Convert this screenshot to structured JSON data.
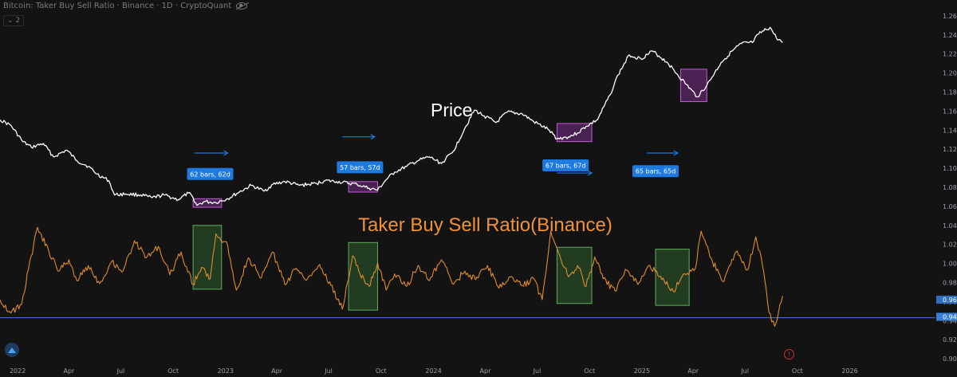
{
  "header": {
    "title": "Bitcoin: Taker Buy Sell Ratio · Binance · 1D · CryptoQuant",
    "layers_count": "2",
    "eye_icon": "eye-hidden-icon"
  },
  "colors": {
    "background": "#131313",
    "price_line": "#ffffff",
    "ratio_line": "#e08a2e",
    "price_box": "#b03cc8",
    "ratio_box": "#3f8a3f",
    "callout": "#1f7ae0",
    "ref_line": "#3b7fd4",
    "price_label": "#ffffff",
    "ratio_label": "#f0923a",
    "axis_text": "#9aa0aa"
  },
  "chart_data": {
    "type": "line",
    "title": "",
    "xlabel": "",
    "ylabel": "",
    "x_ticks": [
      "2022",
      "Apr",
      "Jul",
      "Oct",
      "2023",
      "Apr",
      "Jul",
      "Oct",
      "2024",
      "Apr",
      "Jul",
      "Oct",
      "2025",
      "Apr",
      "Jul",
      "Oct",
      "2026"
    ],
    "y_ticks": [
      "1.26",
      "1.24",
      "1.22",
      "1.20",
      "1.18",
      "1.16",
      "1.14",
      "1.12",
      "1.10",
      "1.08",
      "1.06",
      "1.04",
      "1.02",
      "1.00",
      "0.98",
      "0.96",
      "0.94",
      "0.92",
      "0.90"
    ],
    "ylim": [
      0.89,
      1.27
    ],
    "x_range": [
      "2021-12-01",
      "2025-09-20"
    ],
    "grid": false,
    "annotations": [
      {
        "text": "Price",
        "color": "#ffffff"
      },
      {
        "text": "Taker Buy Sell Ratio(Binance)",
        "color": "#f0923a"
      }
    ],
    "current_value_labels": [
      {
        "text": "0.96",
        "value": 0.962
      },
      {
        "text": "0.94",
        "value": 0.944
      }
    ],
    "reference_line": 0.943,
    "series": [
      {
        "role": "price",
        "x": [
          "2021-12-01",
          "2021-12-20",
          "2022-01-10",
          "2022-01-25",
          "2022-02-15",
          "2022-03-05",
          "2022-03-28",
          "2022-04-15",
          "2022-05-05",
          "2022-05-20",
          "2022-06-10",
          "2022-06-20",
          "2022-07-10",
          "2022-08-05",
          "2022-08-25",
          "2022-09-15",
          "2022-10-10",
          "2022-10-28",
          "2022-11-05",
          "2022-11-12",
          "2022-11-25",
          "2022-12-15",
          "2023-01-05",
          "2023-01-25",
          "2023-02-15",
          "2023-03-10",
          "2023-03-25",
          "2023-04-15",
          "2023-05-10",
          "2023-06-10",
          "2023-06-25",
          "2023-07-15",
          "2023-08-20",
          "2023-09-10",
          "2023-09-25",
          "2023-10-10",
          "2023-10-25",
          "2023-11-15",
          "2023-12-05",
          "2023-12-25",
          "2024-01-15",
          "2024-02-05",
          "2024-02-25",
          "2024-03-13",
          "2024-03-30",
          "2024-04-20",
          "2024-05-10",
          "2024-06-05",
          "2024-06-25",
          "2024-07-20",
          "2024-08-05",
          "2024-08-25",
          "2024-09-10",
          "2024-09-25",
          "2024-10-15",
          "2024-11-06",
          "2024-11-20",
          "2024-12-10",
          "2024-12-30",
          "2025-01-20",
          "2025-02-15",
          "2025-03-05",
          "2025-03-20",
          "2025-04-08",
          "2025-04-25",
          "2025-05-20",
          "2025-06-10",
          "2025-06-25",
          "2025-07-14",
          "2025-07-25",
          "2025-08-14",
          "2025-08-25",
          "2025-09-05"
        ],
        "values": [
          1.151,
          1.145,
          1.128,
          1.122,
          1.126,
          1.112,
          1.119,
          1.108,
          1.102,
          1.094,
          1.087,
          1.072,
          1.073,
          1.072,
          1.069,
          1.072,
          1.067,
          1.074,
          1.069,
          1.061,
          1.065,
          1.064,
          1.068,
          1.075,
          1.082,
          1.076,
          1.083,
          1.086,
          1.082,
          1.084,
          1.087,
          1.086,
          1.083,
          1.079,
          1.077,
          1.088,
          1.096,
          1.102,
          1.108,
          1.112,
          1.105,
          1.118,
          1.142,
          1.161,
          1.155,
          1.148,
          1.159,
          1.157,
          1.149,
          1.141,
          1.131,
          1.133,
          1.137,
          1.144,
          1.151,
          1.177,
          1.198,
          1.219,
          1.215,
          1.223,
          1.211,
          1.198,
          1.188,
          1.175,
          1.187,
          1.211,
          1.224,
          1.231,
          1.232,
          1.241,
          1.248,
          1.237,
          1.232
        ]
      },
      {
        "role": "ratio",
        "x": [
          "2021-12-01",
          "2021-12-20",
          "2022-01-08",
          "2022-01-20",
          "2022-02-05",
          "2022-02-25",
          "2022-03-15",
          "2022-04-01",
          "2022-04-15",
          "2022-05-05",
          "2022-05-25",
          "2022-06-15",
          "2022-07-05",
          "2022-07-25",
          "2022-08-15",
          "2022-09-05",
          "2022-09-25",
          "2022-10-15",
          "2022-11-05",
          "2022-11-20",
          "2022-12-05",
          "2022-12-15",
          "2023-01-05",
          "2023-01-20",
          "2023-02-10",
          "2023-03-05",
          "2023-03-25",
          "2023-04-15",
          "2023-05-05",
          "2023-05-25",
          "2023-06-15",
          "2023-07-05",
          "2023-07-25",
          "2023-08-12",
          "2023-08-25",
          "2023-09-10",
          "2023-09-25",
          "2023-10-10",
          "2023-10-25",
          "2023-11-15",
          "2023-12-05",
          "2023-12-25",
          "2024-01-15",
          "2024-02-05",
          "2024-02-25",
          "2024-03-15",
          "2024-04-05",
          "2024-04-25",
          "2024-05-15",
          "2024-06-05",
          "2024-06-25",
          "2024-07-10",
          "2024-07-25",
          "2024-08-10",
          "2024-08-25",
          "2024-09-10",
          "2024-09-25",
          "2024-10-10",
          "2024-10-25",
          "2024-11-15",
          "2024-12-05",
          "2024-12-25",
          "2025-01-15",
          "2025-02-05",
          "2025-02-25",
          "2025-03-15",
          "2025-04-05",
          "2025-04-15",
          "2025-05-05",
          "2025-05-25",
          "2025-06-15",
          "2025-07-05",
          "2025-07-20",
          "2025-08-01",
          "2025-08-12",
          "2025-08-22",
          "2025-09-05"
        ],
        "values": [
          0.962,
          0.948,
          0.957,
          0.994,
          1.038,
          1.012,
          0.992,
          1.004,
          0.982,
          0.998,
          0.979,
          1.002,
          0.992,
          1.024,
          1.006,
          1.018,
          0.988,
          1.012,
          0.978,
          0.996,
          0.984,
          1.031,
          1.018,
          0.972,
          1.006,
          0.985,
          1.012,
          0.978,
          0.995,
          0.984,
          0.999,
          0.977,
          0.952,
          1.008,
          0.989,
          0.976,
          1.001,
          0.972,
          0.989,
          0.976,
          0.998,
          0.982,
          1.004,
          0.978,
          0.992,
          0.983,
          0.998,
          0.974,
          0.986,
          0.977,
          0.984,
          0.962,
          1.034,
          1.008,
          0.986,
          0.998,
          0.976,
          1.007,
          0.984,
          0.971,
          0.993,
          0.978,
          0.998,
          0.983,
          0.971,
          0.989,
          0.995,
          1.034,
          1.002,
          0.981,
          1.012,
          0.993,
          1.028,
          0.997,
          0.949,
          0.934,
          0.966
        ]
      }
    ],
    "ratio_boxes": [
      {
        "x0": "2022-11-05",
        "x1": "2022-12-25",
        "y0": 0.973,
        "y1": 1.04
      },
      {
        "x0": "2023-08-05",
        "x1": "2023-09-25",
        "y0": 0.951,
        "y1": 1.022
      },
      {
        "x0": "2024-08-05",
        "x1": "2024-10-05",
        "y0": 0.958,
        "y1": 1.017
      },
      {
        "x0": "2025-01-25",
        "x1": "2025-03-25",
        "y0": 0.956,
        "y1": 1.015
      }
    ],
    "price_boxes": [
      {
        "x0": "2022-11-05",
        "x1": "2022-12-25",
        "y0": 1.059,
        "y1": 1.068
      },
      {
        "x0": "2023-08-05",
        "x1": "2023-09-25",
        "y0": 1.075,
        "y1": 1.086
      },
      {
        "x0": "2024-08-05",
        "x1": "2024-10-05",
        "y0": 1.128,
        "y1": 1.147
      },
      {
        "x0": "2025-03-10",
        "x1": "2025-04-25",
        "y0": 1.17,
        "y1": 1.204
      }
    ],
    "callouts": [
      {
        "text": "62 bars, 62d",
        "x": "2022-12-05",
        "y": 1.094,
        "arrow_x0": "2022-11-07",
        "arrow_x1": "2023-01-05",
        "arrow_y": 1.116,
        "arrow_dir": "right"
      },
      {
        "text": "57 bars, 57d",
        "x": "2023-08-25",
        "y": 1.101,
        "arrow_x0": "2023-07-25",
        "arrow_x1": "2023-09-20",
        "arrow_y": 1.133,
        "arrow_dir": "right"
      },
      {
        "text": "67 bars, 67d",
        "x": "2024-08-20",
        "y": 1.103,
        "arrow_x0": "2024-08-05",
        "arrow_x1": "2024-10-05",
        "arrow_y": 1.095,
        "arrow_dir": "right"
      },
      {
        "text": "65 bars, 65d",
        "x": "2025-01-25",
        "y": 1.097,
        "arrow_x0": "2025-01-10",
        "arrow_x1": "2025-03-05",
        "arrow_y": 1.116,
        "arrow_dir": "right"
      }
    ]
  }
}
